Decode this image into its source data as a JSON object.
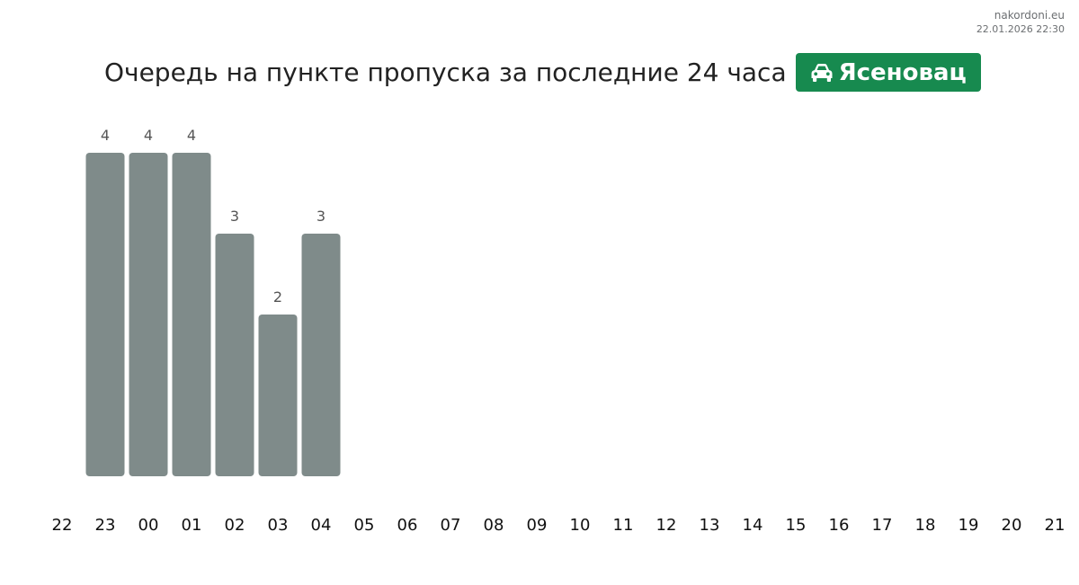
{
  "watermark": {
    "site": "nakordoni.eu",
    "datetime": "22.01.2026 22:30"
  },
  "header": {
    "title": "Очередь на пункте пропуска за последние 24 часа",
    "badge_label": "Ясеновац",
    "badge_icon": "car-icon",
    "badge_color": "#178a4f"
  },
  "chart_data": {
    "type": "bar",
    "title": "Очередь на пункте пропуска за последние 24 часа",
    "xlabel": "",
    "ylabel": "",
    "categories": [
      "22",
      "23",
      "00",
      "01",
      "02",
      "03",
      "04",
      "05",
      "06",
      "07",
      "08",
      "09",
      "10",
      "11",
      "12",
      "13",
      "14",
      "15",
      "16",
      "17",
      "18",
      "19",
      "20",
      "21"
    ],
    "values": [
      null,
      4,
      4,
      4,
      3,
      2,
      3,
      null,
      null,
      null,
      null,
      null,
      null,
      null,
      null,
      null,
      null,
      null,
      null,
      null,
      null,
      null,
      null,
      null
    ],
    "ylim": [
      0,
      4
    ],
    "grid": false,
    "bar_color": "#7f8b8a"
  }
}
